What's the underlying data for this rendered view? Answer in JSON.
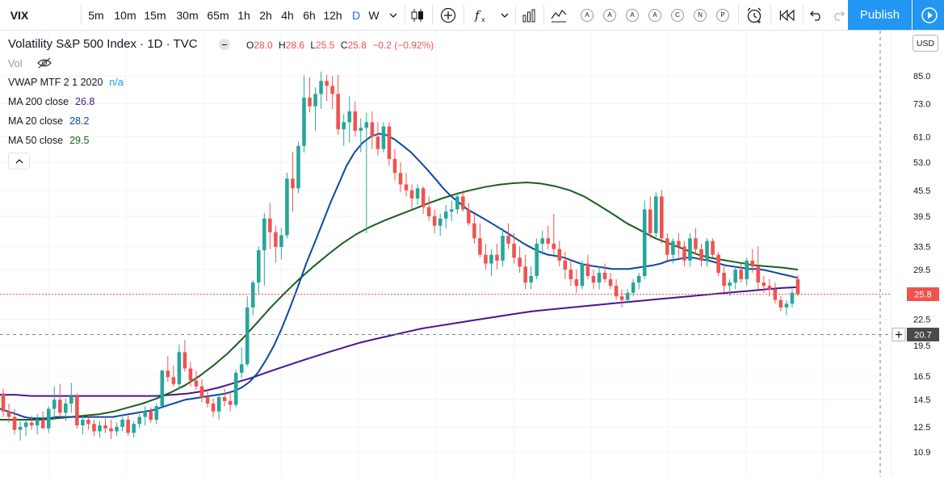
{
  "toolbar": {
    "symbol": "VIX",
    "intervals": [
      "5m",
      "10m",
      "15m",
      "30m",
      "65m",
      "1h",
      "2h",
      "4h",
      "6h",
      "12h",
      "D",
      "W"
    ],
    "active_interval": "D",
    "circle_labels": [
      "A",
      "A",
      "A",
      "A",
      "C",
      "N",
      "P"
    ],
    "publish_label": "Publish",
    "accent": "#2962ff",
    "publish_color": "#2196f3"
  },
  "legend": {
    "title": "Volatility S&P 500 Index · 1D · TVC",
    "ohlc": {
      "o_label": "O",
      "o": "28.0",
      "h_label": "H",
      "h": "28.6",
      "l_label": "L",
      "l": "25.5",
      "c_label": "C",
      "c": "25.8",
      "change": "−0.2 (−0.92%)"
    },
    "vol_label": "Vol",
    "indicators": [
      {
        "name": "VWAP MTF 2 1 2020",
        "value": "n/a",
        "color": "#2196f3"
      },
      {
        "name": "MA 200 close",
        "value": "26.8",
        "color": "#4a148c"
      },
      {
        "name": "MA 20 close",
        "value": "28.2",
        "color": "#0d47a1"
      },
      {
        "name": "MA 50 close",
        "value": "29.5",
        "color": "#1b5e20"
      }
    ]
  },
  "price_axis": {
    "currency": "USD",
    "ticks": [
      "85.0",
      "73.0",
      "61.0",
      "53.0",
      "45.5",
      "39.5",
      "33.5",
      "29.5",
      "22.5",
      "19.5",
      "16.5",
      "14.5",
      "12.5",
      "10.9"
    ],
    "last_price": "25.8",
    "crosshair_price": "20.7"
  },
  "chart_data": {
    "type": "candlestick",
    "scale": "log",
    "up_color": "#26a69a",
    "down_color": "#ef5350",
    "ohlc": [
      [
        15.0,
        15.4,
        13.2,
        13.6
      ],
      [
        13.6,
        14.2,
        12.8,
        13.2
      ],
      [
        13.2,
        13.8,
        12.0,
        12.3
      ],
      [
        12.3,
        12.9,
        11.6,
        12.5
      ],
      [
        12.5,
        13.0,
        11.9,
        12.8
      ],
      [
        12.8,
        13.3,
        12.3,
        12.6
      ],
      [
        12.6,
        13.4,
        12.0,
        13.0
      ],
      [
        13.0,
        13.6,
        12.5,
        12.4
      ],
      [
        12.4,
        14.0,
        12.1,
        13.8
      ],
      [
        13.8,
        15.6,
        13.0,
        14.5
      ],
      [
        14.5,
        15.8,
        13.2,
        13.5
      ],
      [
        13.5,
        14.6,
        12.9,
        14.2
      ],
      [
        14.2,
        15.9,
        13.5,
        14.8
      ],
      [
        14.8,
        15.0,
        12.4,
        12.6
      ],
      [
        12.6,
        13.3,
        12.0,
        13.0
      ],
      [
        13.0,
        13.4,
        12.3,
        12.7
      ],
      [
        12.7,
        13.0,
        11.9,
        12.2
      ],
      [
        12.2,
        12.9,
        11.8,
        12.6
      ],
      [
        12.6,
        13.1,
        12.1,
        12.4
      ],
      [
        12.4,
        13.0,
        11.7,
        12.2
      ],
      [
        12.2,
        12.8,
        11.9,
        12.5
      ],
      [
        12.5,
        13.2,
        12.2,
        13.0
      ],
      [
        13.0,
        13.3,
        11.9,
        12.1
      ],
      [
        12.1,
        12.9,
        11.8,
        12.7
      ],
      [
        12.7,
        13.4,
        12.4,
        13.2
      ],
      [
        13.2,
        14.0,
        12.6,
        13.6
      ],
      [
        13.6,
        13.9,
        12.8,
        13.0
      ],
      [
        13.0,
        14.2,
        12.7,
        14.0
      ],
      [
        14.0,
        17.1,
        13.9,
        17.0
      ],
      [
        17.0,
        18.4,
        16.0,
        16.4
      ],
      [
        16.4,
        17.5,
        15.6,
        15.8
      ],
      [
        15.8,
        19.6,
        15.4,
        18.8
      ],
      [
        18.8,
        20.1,
        16.9,
        17.2
      ],
      [
        17.2,
        17.8,
        15.6,
        16.1
      ],
      [
        16.1,
        17.0,
        15.3,
        15.6
      ],
      [
        15.6,
        16.2,
        14.3,
        14.7
      ],
      [
        14.7,
        15.4,
        13.9,
        14.2
      ],
      [
        14.2,
        14.6,
        13.2,
        13.6
      ],
      [
        13.6,
        14.9,
        13.0,
        14.7
      ],
      [
        14.7,
        15.4,
        14.0,
        14.4
      ],
      [
        14.4,
        15.1,
        13.6,
        14.1
      ],
      [
        14.1,
        17.1,
        13.9,
        16.8
      ],
      [
        16.8,
        19.3,
        16.3,
        17.6
      ],
      [
        17.6,
        25.5,
        17.4,
        24.0
      ],
      [
        24.0,
        27.8,
        23.0,
        27.5
      ],
      [
        27.5,
        33.5,
        25.8,
        32.8
      ],
      [
        32.8,
        40.2,
        27.0,
        39.0
      ],
      [
        39.0,
        42.5,
        33.0,
        36.2
      ],
      [
        36.2,
        37.5,
        30.6,
        33.4
      ],
      [
        33.4,
        37.0,
        31.2,
        35.6
      ],
      [
        35.6,
        50.1,
        35.0,
        48.5
      ],
      [
        48.5,
        56.2,
        40.5,
        46.0
      ],
      [
        46.0,
        59.3,
        44.8,
        58.0
      ],
      [
        58.0,
        85.1,
        55.9,
        75.5
      ],
      [
        75.5,
        84.4,
        69.6,
        72.0
      ],
      [
        72.0,
        79.8,
        63.0,
        77.0
      ],
      [
        77.0,
        87.0,
        71.0,
        82.7
      ],
      [
        82.7,
        85.5,
        74.0,
        80.5
      ],
      [
        80.5,
        85.0,
        71.0,
        77.0
      ],
      [
        77.0,
        85.5,
        61.6,
        63.5
      ],
      [
        63.5,
        69.0,
        58.0,
        66.0
      ],
      [
        66.0,
        76.0,
        59.0,
        70.0
      ],
      [
        70.0,
        74.0,
        61.0,
        63.0
      ],
      [
        63.0,
        67.5,
        56.0,
        64.0
      ],
      [
        64.0,
        69.5,
        36.0,
        66.0
      ],
      [
        66.0,
        70.0,
        57.0,
        61.0
      ],
      [
        61.0,
        66.0,
        55.0,
        57.0
      ],
      [
        57.0,
        66.0,
        56.0,
        64.5
      ],
      [
        64.5,
        66.0,
        52.0,
        54.0
      ],
      [
        54.0,
        57.0,
        48.0,
        50.0
      ],
      [
        50.0,
        53.0,
        45.0,
        47.0
      ],
      [
        47.0,
        50.0,
        44.0,
        45.5
      ],
      [
        45.5,
        47.0,
        41.0,
        43.5
      ],
      [
        43.5,
        47.0,
        42.0,
        46.0
      ],
      [
        46.0,
        46.5,
        40.0,
        41.5
      ],
      [
        41.5,
        44.0,
        38.5,
        39.5
      ],
      [
        39.5,
        41.0,
        36.0,
        37.5
      ],
      [
        37.5,
        40.0,
        35.5,
        39.0
      ],
      [
        39.0,
        42.0,
        37.0,
        40.5
      ],
      [
        40.5,
        43.0,
        38.5,
        41.0
      ],
      [
        41.0,
        45.0,
        40.0,
        44.0
      ],
      [
        44.0,
        45.5,
        40.5,
        41.0
      ],
      [
        41.0,
        42.5,
        37.5,
        38.0
      ],
      [
        38.0,
        40.0,
        34.0,
        35.0
      ],
      [
        35.0,
        38.0,
        31.5,
        32.0
      ],
      [
        32.0,
        34.0,
        29.5,
        30.5
      ],
      [
        30.5,
        33.0,
        28.5,
        32.0
      ],
      [
        32.0,
        34.0,
        29.5,
        31.0
      ],
      [
        31.0,
        37.0,
        30.0,
        35.5
      ],
      [
        35.5,
        38.0,
        33.0,
        34.0
      ],
      [
        34.0,
        36.0,
        30.5,
        31.5
      ],
      [
        31.5,
        33.5,
        29.0,
        30.0
      ],
      [
        30.0,
        32.0,
        26.5,
        27.5
      ],
      [
        27.5,
        30.0,
        26.5,
        28.5
      ],
      [
        28.5,
        35.0,
        28.0,
        34.0
      ],
      [
        34.0,
        36.5,
        32.0,
        35.0
      ],
      [
        35.0,
        37.5,
        33.0,
        34.0
      ],
      [
        34.0,
        40.0,
        32.0,
        33.0
      ],
      [
        33.0,
        34.5,
        30.0,
        31.0
      ],
      [
        31.0,
        32.5,
        28.0,
        29.5
      ],
      [
        29.5,
        31.0,
        27.0,
        28.0
      ],
      [
        28.0,
        29.5,
        26.0,
        27.0
      ],
      [
        27.0,
        31.0,
        26.5,
        30.5
      ],
      [
        30.5,
        32.0,
        28.0,
        28.5
      ],
      [
        28.5,
        29.5,
        26.5,
        27.5
      ],
      [
        27.5,
        30.0,
        26.5,
        29.0
      ],
      [
        29.0,
        30.5,
        27.5,
        28.0
      ],
      [
        28.0,
        29.0,
        26.5,
        27.0
      ],
      [
        27.0,
        28.0,
        25.0,
        25.5
      ],
      [
        25.5,
        26.5,
        24.0,
        25.0
      ],
      [
        25.0,
        26.5,
        24.5,
        26.0
      ],
      [
        26.0,
        28.0,
        25.5,
        27.5
      ],
      [
        27.5,
        29.0,
        26.5,
        28.5
      ],
      [
        28.5,
        43.0,
        28.0,
        41.0
      ],
      [
        41.0,
        44.0,
        35.0,
        36.0
      ],
      [
        36.0,
        45.0,
        35.0,
        44.0
      ],
      [
        44.0,
        45.5,
        34.0,
        35.0
      ],
      [
        35.0,
        36.0,
        31.0,
        32.0
      ],
      [
        32.0,
        35.0,
        30.5,
        34.5
      ],
      [
        34.5,
        36.0,
        31.5,
        33.5
      ],
      [
        33.5,
        34.5,
        30.0,
        31.0
      ],
      [
        31.0,
        36.0,
        30.0,
        35.0
      ],
      [
        35.0,
        37.0,
        32.0,
        33.0
      ],
      [
        33.0,
        34.0,
        30.0,
        31.0
      ],
      [
        31.0,
        35.0,
        30.0,
        34.5
      ],
      [
        34.5,
        35.0,
        31.5,
        32.0
      ],
      [
        32.0,
        32.5,
        28.5,
        29.0
      ],
      [
        29.0,
        30.0,
        26.0,
        27.0
      ],
      [
        27.0,
        28.0,
        25.5,
        27.5
      ],
      [
        27.5,
        30.0,
        26.5,
        29.5
      ],
      [
        29.5,
        30.5,
        27.5,
        28.0
      ],
      [
        28.0,
        31.5,
        27.0,
        31.0
      ],
      [
        31.0,
        33.0,
        29.0,
        30.0
      ],
      [
        30.0,
        33.5,
        26.5,
        27.5
      ],
      [
        27.5,
        28.5,
        26.0,
        27.0
      ],
      [
        27.0,
        28.0,
        25.5,
        26.5
      ],
      [
        26.5,
        27.5,
        24.5,
        25.0
      ],
      [
        25.0,
        25.5,
        23.5,
        24.0
      ],
      [
        24.0,
        25.0,
        23.0,
        24.5
      ],
      [
        24.5,
        26.5,
        24.0,
        26.0
      ],
      [
        28.0,
        28.6,
        25.5,
        25.8
      ]
    ],
    "ma20": [
      13.8,
      13.6,
      13.4,
      13.2,
      13.1,
      13.1,
      13.1,
      13.2,
      13.2,
      13.2,
      13.2,
      13.2,
      13.2,
      13.2,
      13.2,
      13.3,
      13.4,
      13.5,
      13.6,
      13.7,
      13.9,
      14.1,
      14.3,
      14.5,
      14.6,
      14.7,
      14.8,
      14.9,
      15.0,
      15.2,
      15.5,
      16.0,
      16.8,
      18.0,
      19.5,
      21.5,
      24.0,
      27.0,
      30.5,
      34.0,
      38.0,
      42.5,
      47.0,
      52.0,
      56.0,
      59.0,
      61.0,
      62.0,
      61.5,
      60.0,
      58.0,
      56.0,
      53.5,
      51.0,
      48.5,
      46.0,
      44.0,
      42.5,
      41.0,
      40.0,
      39.0,
      38.0,
      37.0,
      36.0,
      35.0,
      34.0,
      33.2,
      32.5,
      32.0,
      31.8,
      31.5,
      31.0,
      30.5,
      30.2,
      30.0,
      29.8,
      29.6,
      29.6,
      29.6,
      29.8,
      30.0,
      30.2,
      30.5,
      31.0,
      31.2,
      31.5,
      31.5,
      31.2,
      31.0,
      30.6,
      30.2,
      30.0,
      29.8,
      29.6,
      29.6,
      29.4,
      29.1,
      28.8,
      28.5,
      28.2
    ],
    "ma50": [
      13.0,
      13.0,
      13.0,
      13.0,
      13.1,
      13.2,
      13.3,
      13.4,
      13.6,
      13.9,
      14.2,
      14.6,
      15.1,
      15.7,
      16.5,
      17.5,
      18.7,
      20.2,
      22.0,
      24.0,
      26.0,
      28.0,
      30.0,
      32.0,
      34.0,
      35.8,
      37.3,
      38.6,
      39.8,
      41.0,
      42.3,
      43.5,
      44.6,
      45.5,
      46.3,
      46.9,
      47.3,
      47.5,
      47.2,
      46.5,
      45.5,
      44.0,
      42.0,
      40.0,
      38.0,
      36.5,
      35.0,
      34.0,
      33.0,
      32.0,
      31.4,
      31.0,
      30.6,
      30.2,
      30.0,
      29.8,
      29.5
    ],
    "ma200": [
      14.9,
      14.9,
      14.8,
      14.8,
      14.8,
      14.8,
      14.8,
      14.8,
      14.8,
      14.8,
      14.8,
      14.9,
      15.0,
      15.2,
      15.5,
      15.9,
      16.3,
      16.8,
      17.3,
      17.8,
      18.3,
      18.8,
      19.3,
      19.8,
      20.2,
      20.6,
      21.0,
      21.4,
      21.7,
      22.0,
      22.3,
      22.6,
      22.9,
      23.2,
      23.5,
      23.7,
      23.9,
      24.1,
      24.3,
      24.5,
      24.7,
      24.9,
      25.1,
      25.3,
      25.5,
      25.7,
      25.9,
      26.1,
      26.3,
      26.5,
      26.7,
      26.8
    ]
  }
}
